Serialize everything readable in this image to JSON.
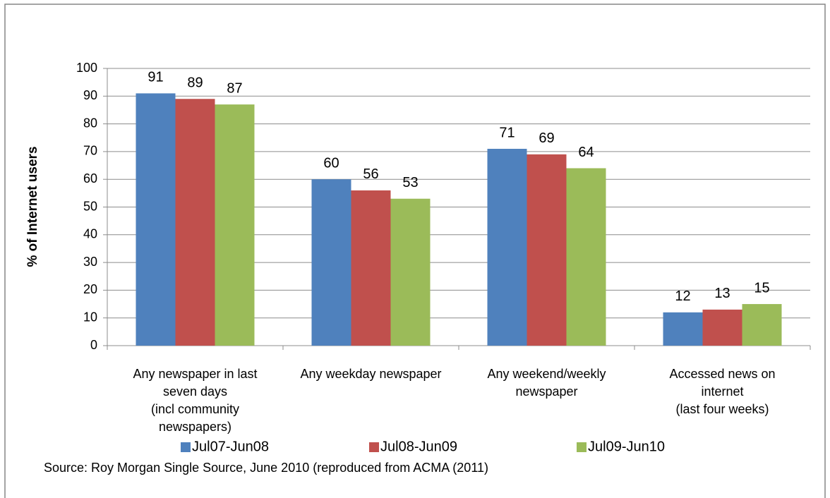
{
  "chart_data": {
    "type": "bar",
    "y_label": "% of Internet users",
    "categories": [
      "Any newspaper in last\nseven days\n(incl community\nnewspapers)",
      "Any weekday newspaper",
      "Any weekend/weekly\nnewspaper",
      "Accessed news on\ninternet\n(last four weeks)"
    ],
    "series": [
      {
        "name": "Jul07-Jun08",
        "color": "#4f81bd",
        "values": [
          91,
          60,
          71,
          12
        ]
      },
      {
        "name": "Jul08-Jun09",
        "color": "#c0504d",
        "values": [
          89,
          56,
          69,
          13
        ]
      },
      {
        "name": "Jul09-Jun10",
        "color": "#9bbb59",
        "values": [
          87,
          53,
          64,
          15
        ]
      }
    ],
    "ylim": [
      0,
      100
    ],
    "yticks": [
      0,
      10,
      20,
      30,
      40,
      50,
      60,
      70,
      80,
      90,
      100
    ],
    "grid": true,
    "legend": "bottom",
    "source": "Source: Roy Morgan Single Source, June 2010 (reproduced from ACMA (2011)"
  }
}
